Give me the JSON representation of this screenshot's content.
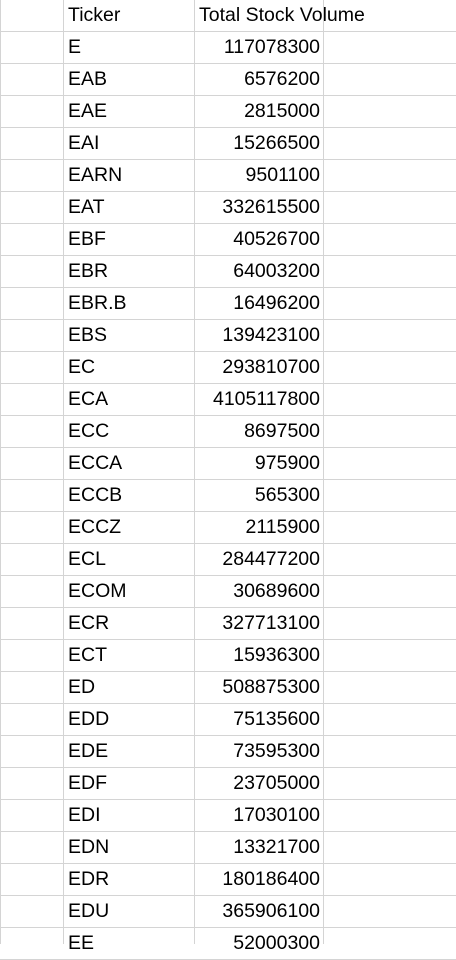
{
  "header": {
    "ticker_label": "Ticker",
    "volume_label": "Total Stock Volume"
  },
  "rows": [
    {
      "ticker": "E",
      "volume": "117078300"
    },
    {
      "ticker": "EAB",
      "volume": "6576200"
    },
    {
      "ticker": "EAE",
      "volume": "2815000"
    },
    {
      "ticker": "EAI",
      "volume": "15266500"
    },
    {
      "ticker": "EARN",
      "volume": "9501100"
    },
    {
      "ticker": "EAT",
      "volume": "332615500"
    },
    {
      "ticker": "EBF",
      "volume": "40526700"
    },
    {
      "ticker": "EBR",
      "volume": "64003200"
    },
    {
      "ticker": "EBR.B",
      "volume": "16496200"
    },
    {
      "ticker": "EBS",
      "volume": "139423100"
    },
    {
      "ticker": "EC",
      "volume": "293810700"
    },
    {
      "ticker": "ECA",
      "volume": "4105117800"
    },
    {
      "ticker": "ECC",
      "volume": "8697500"
    },
    {
      "ticker": "ECCA",
      "volume": "975900"
    },
    {
      "ticker": "ECCB",
      "volume": "565300"
    },
    {
      "ticker": "ECCZ",
      "volume": "2115900"
    },
    {
      "ticker": "ECL",
      "volume": "284477200"
    },
    {
      "ticker": "ECOM",
      "volume": "30689600"
    },
    {
      "ticker": "ECR",
      "volume": "327713100"
    },
    {
      "ticker": "ECT",
      "volume": "15936300"
    },
    {
      "ticker": "ED",
      "volume": "508875300"
    },
    {
      "ticker": "EDD",
      "volume": "75135600"
    },
    {
      "ticker": "EDE",
      "volume": "73595300"
    },
    {
      "ticker": "EDF",
      "volume": "23705000"
    },
    {
      "ticker": "EDI",
      "volume": "17030100"
    },
    {
      "ticker": "EDN",
      "volume": "13321700"
    },
    {
      "ticker": "EDR",
      "volume": "180186400"
    },
    {
      "ticker": "EDU",
      "volume": "365906100"
    },
    {
      "ticker": "EE",
      "volume": "52000300"
    }
  ]
}
